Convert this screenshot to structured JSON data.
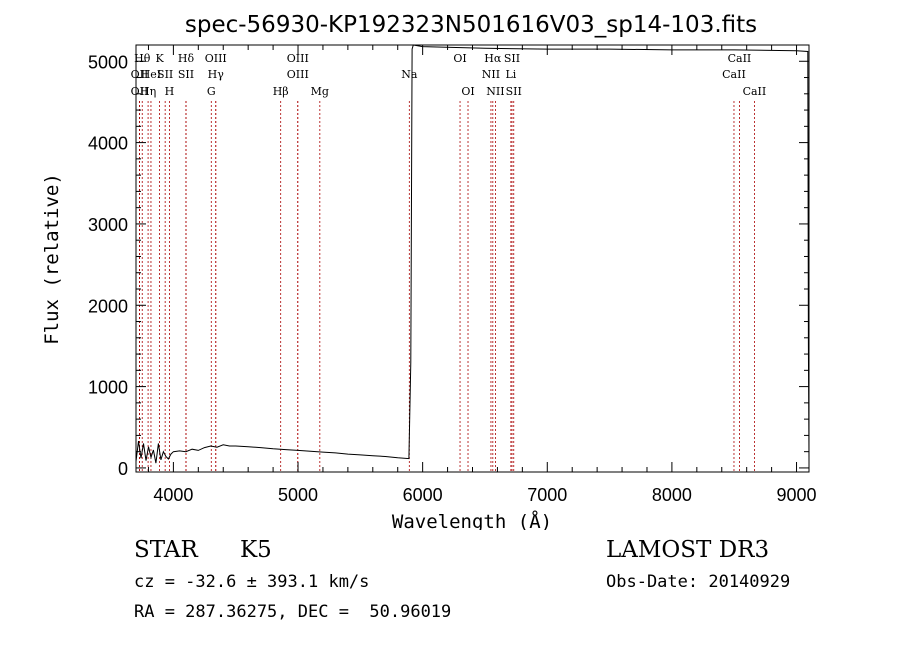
{
  "chart_data": {
    "type": "line",
    "title": "spec-56930-KP192323N501616V03_sp14-103.fits",
    "xlabel": "Wavelength (Å)",
    "ylabel": "Flux (relative)",
    "xlim": [
      3700,
      9100
    ],
    "ylim": [
      -50,
      5200
    ],
    "xticks": [
      4000,
      5000,
      6000,
      7000,
      8000,
      9000
    ],
    "yticks": [
      0,
      1000,
      2000,
      3000,
      4000,
      5000
    ],
    "series": [
      {
        "name": "flux",
        "color": "#000000",
        "x": [
          3700,
          3720,
          3740,
          3760,
          3780,
          3800,
          3820,
          3840,
          3860,
          3880,
          3900,
          3920,
          3940,
          3960,
          3980,
          4000,
          4050,
          4100,
          4150,
          4200,
          4250,
          4300,
          4350,
          4400,
          4450,
          4500,
          4600,
          4700,
          4800,
          4900,
          5000,
          5100,
          5200,
          5300,
          5400,
          5500,
          5600,
          5700,
          5800,
          5890,
          5905,
          5915,
          5925,
          6000,
          6500,
          7000,
          7500,
          8000,
          8500,
          9000,
          9090,
          9095,
          9100
        ],
        "y": [
          80,
          330,
          120,
          300,
          90,
          260,
          130,
          220,
          60,
          300,
          100,
          200,
          140,
          110,
          170,
          200,
          210,
          200,
          230,
          215,
          250,
          270,
          255,
          285,
          270,
          270,
          260,
          250,
          235,
          225,
          215,
          205,
          195,
          185,
          170,
          160,
          150,
          140,
          125,
          115,
          1300,
          5150,
          5200,
          5180,
          5160,
          5150,
          5150,
          5140,
          5140,
          5130,
          5120,
          1500,
          80
        ]
      }
    ],
    "line_markers": [
      {
        "x": 3750,
        "label": "Hθ",
        "row": 0
      },
      {
        "x": 3728,
        "label": "OII",
        "row": 1
      },
      {
        "x": 3728,
        "label": "OII",
        "row": 2
      },
      {
        "x": 3797,
        "label": "Hη",
        "row": 2
      },
      {
        "x": 3820,
        "label": "HeI",
        "row": 1
      },
      {
        "x": 3889,
        "label": "K",
        "row": 0
      },
      {
        "x": 3934,
        "label": "SII",
        "row": 1
      },
      {
        "x": 3968,
        "label": "H",
        "row": 2
      },
      {
        "x": 4101,
        "label": "Hδ",
        "row": 0
      },
      {
        "x": 4101,
        "label": "SII",
        "row": 1
      },
      {
        "x": 4340,
        "label": "OIII",
        "row": 0
      },
      {
        "x": 4340,
        "label": "Hγ",
        "row": 1
      },
      {
        "x": 4304,
        "label": "G",
        "row": 2
      },
      {
        "x": 4861,
        "label": "Hβ",
        "row": 2
      },
      {
        "x": 4998,
        "label": "OIII",
        "row": 0
      },
      {
        "x": 4998,
        "label": "OIII",
        "row": 1
      },
      {
        "x": 5175,
        "label": "Mg",
        "row": 2
      },
      {
        "x": 5893,
        "label": "Na",
        "row": 1
      },
      {
        "x": 6300,
        "label": "OI",
        "row": 0
      },
      {
        "x": 6364,
        "label": "OI",
        "row": 2
      },
      {
        "x": 6563,
        "label": "Hα",
        "row": 0
      },
      {
        "x": 6548,
        "label": "NII",
        "row": 1
      },
      {
        "x": 6584,
        "label": "NII",
        "row": 2
      },
      {
        "x": 6708,
        "label": "Li",
        "row": 1
      },
      {
        "x": 6717,
        "label": "SII",
        "row": 0
      },
      {
        "x": 6731,
        "label": "SII",
        "row": 2
      },
      {
        "x": 8542,
        "label": "CaII",
        "row": 0
      },
      {
        "x": 8498,
        "label": "CaII",
        "row": 1
      },
      {
        "x": 8662,
        "label": "CaII",
        "row": 2
      }
    ],
    "marker_color": "#aa0000"
  },
  "info": {
    "class": "STAR",
    "subclass": "K5",
    "survey": "LAMOST DR3",
    "cz": "cz = -32.6 ± 393.1 km/s",
    "obs_date": "Obs-Date: 20140929",
    "coords": "RA = 287.36275, DEC =  50.96019"
  }
}
